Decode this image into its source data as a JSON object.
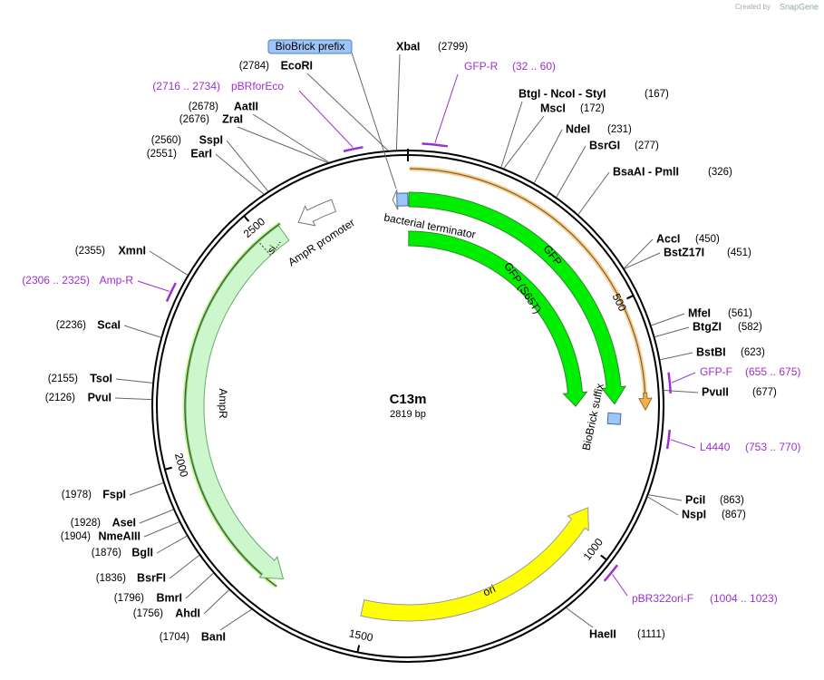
{
  "header": {
    "credit": "Created by",
    "brand": "SnapGene"
  },
  "map": {
    "name": "C13m",
    "length": "2819 bp",
    "ticks": [
      "500",
      "1000",
      "1500",
      "2000",
      "2500"
    ],
    "features": [
      "BioBrick prefix",
      "bacterial terminator",
      "AmpR promoter",
      "si...",
      "AmpR",
      "GFP",
      "GFP (S65T)",
      "BioBrick suffix",
      "ori"
    ],
    "sites": [
      {
        "name": "XbaI",
        "pos": "(2799)"
      },
      {
        "name": "EcoRI",
        "pos": "(2784)"
      },
      {
        "name": "BtgI - NcoI - StyI",
        "pos": "(167)"
      },
      {
        "name": "MscI",
        "pos": "(172)"
      },
      {
        "name": "NdeI",
        "pos": "(231)"
      },
      {
        "name": "BsrGI",
        "pos": "(277)"
      },
      {
        "name": "BsaAI - PmlI",
        "pos": "(326)"
      },
      {
        "name": "AccI",
        "pos": "(450)"
      },
      {
        "name": "BstZ17I",
        "pos": "(451)"
      },
      {
        "name": "MfeI",
        "pos": "(561)"
      },
      {
        "name": "BtgZI",
        "pos": "(582)"
      },
      {
        "name": "BstBI",
        "pos": "(623)"
      },
      {
        "name": "PvuII",
        "pos": "(677)"
      },
      {
        "name": "PciI",
        "pos": "(863)"
      },
      {
        "name": "NspI",
        "pos": "(867)"
      },
      {
        "name": "HaeII",
        "pos": "(1111)"
      },
      {
        "name": "AatII",
        "pos": "(2678)"
      },
      {
        "name": "ZraI",
        "pos": "(2676)"
      },
      {
        "name": "SspI",
        "pos": "(2560)"
      },
      {
        "name": "EarI",
        "pos": "(2551)"
      },
      {
        "name": "XmnI",
        "pos": "(2355)"
      },
      {
        "name": "ScaI",
        "pos": "(2236)"
      },
      {
        "name": "TsoI",
        "pos": "(2155)"
      },
      {
        "name": "PvuI",
        "pos": "(2126)"
      },
      {
        "name": "FspI",
        "pos": "(1978)"
      },
      {
        "name": "AseI",
        "pos": "(1928)"
      },
      {
        "name": "NmeAIII",
        "pos": "(1904)"
      },
      {
        "name": "BglI",
        "pos": "(1876)"
      },
      {
        "name": "BsrFI",
        "pos": "(1836)"
      },
      {
        "name": "BmrI",
        "pos": "(1796)"
      },
      {
        "name": "AhdI",
        "pos": "(1756)"
      },
      {
        "name": "BanI",
        "pos": "(1704)"
      }
    ],
    "primers": [
      {
        "name": "GFP-R",
        "range": "(32 .. 60)"
      },
      {
        "name": "pBRforEco",
        "range": "(2716 .. 2734)"
      },
      {
        "name": "Amp-R",
        "range": "(2306 .. 2325)"
      },
      {
        "name": "GFP-F",
        "range": "(655 .. 675)"
      },
      {
        "name": "L4440",
        "range": "(753 .. 770)"
      },
      {
        "name": "pBR322ori-F",
        "range": "(1004 .. 1023)"
      }
    ]
  }
}
